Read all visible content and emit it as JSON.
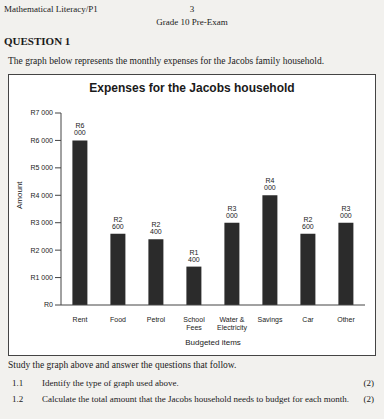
{
  "header": {
    "subject": "Mathematical Literacy/P1",
    "page": "3",
    "exam": "Grade 10 Pre-Exam"
  },
  "question": {
    "title": "QUESTION 1",
    "intro": "The graph below represents the monthly expenses for the Jacobs family household."
  },
  "chart_data": {
    "type": "bar",
    "title": "Expenses for the Jacobs household",
    "x_label": "Budgeted items",
    "y_label": "Amount",
    "categories": [
      "Rent",
      "Food",
      "Petrol",
      "School Fees",
      "Water & Electricity",
      "Savings",
      "Car",
      "Other"
    ],
    "values": [
      6000,
      2600,
      2400,
      1400,
      3000,
      4000,
      2600,
      3000
    ],
    "value_labels": [
      "R6 000",
      "R2 600",
      "R2 400",
      "R1 400",
      "R3 000",
      "R4 000",
      "R2 600",
      "R3 000"
    ],
    "color": "#2b2b2b",
    "ylim": [
      0,
      7000
    ],
    "yticks": [
      {
        "value": 0,
        "label": "R0"
      },
      {
        "value": 1000,
        "label": "R1 000"
      },
      {
        "value": 2000,
        "label": "R2 000"
      },
      {
        "value": 3000,
        "label": "R3 000"
      },
      {
        "value": 4000,
        "label": "R4 000"
      },
      {
        "value": 5000,
        "label": "R5 000"
      },
      {
        "value": 6000,
        "label": "R6 000"
      },
      {
        "value": 7000,
        "label": "R7 000"
      }
    ],
    "data_labels": true,
    "grid": false
  },
  "instruction": "Study the graph above and answer the questions that follow.",
  "questions": [
    {
      "number": "1.1",
      "text": "Identify the type of graph used above.",
      "marks": "(2)"
    },
    {
      "number": "1.2",
      "text": "Calculate the total amount that the Jacobs household needs to budget for each month.",
      "marks": "(2)"
    }
  ]
}
